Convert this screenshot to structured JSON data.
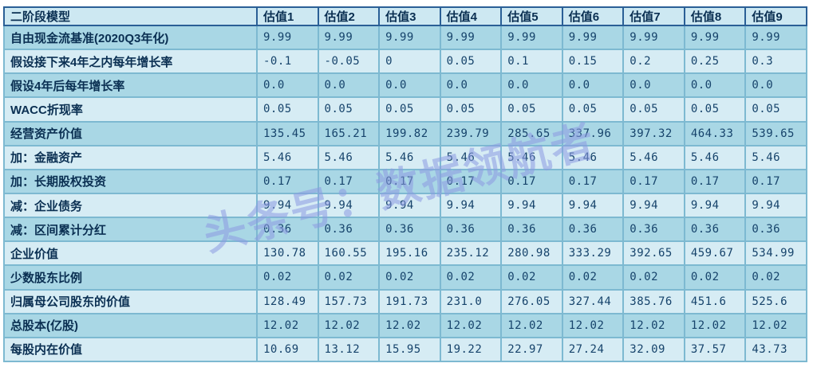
{
  "watermark": {
    "text": "头条号：数据领航者",
    "color": "#8d9be3"
  },
  "colors": {
    "row_dark": "#a9d7e5",
    "row_light": "#d6ecf4",
    "header_bg": "#cde8f2",
    "body_grid": "#7db9d1",
    "header_grid": "#2a5f96",
    "outer_border": "#27609b",
    "label_text": "#0a2f52",
    "value_text": "#16436b",
    "page_bg": "#ffffff"
  },
  "table": {
    "title_cell": "二阶段模型",
    "columns": [
      "估值1",
      "估值2",
      "估值3",
      "估值4",
      "估值5",
      "估值6",
      "估值7",
      "估值8",
      "估值9"
    ],
    "rows": [
      {
        "label": "自由现金流基准(2020Q3年化)",
        "values": [
          "9.99",
          "9.99",
          "9.99",
          "9.99",
          "9.99",
          "9.99",
          "9.99",
          "9.99",
          "9.99"
        ]
      },
      {
        "label": "假设接下来4年之内每年增长率",
        "values": [
          "-0.1",
          "-0.05",
          "0",
          "0.05",
          "0.1",
          "0.15",
          "0.2",
          "0.25",
          "0.3"
        ]
      },
      {
        "label": "假设4年后每年增长率",
        "values": [
          "0.0",
          "0.0",
          "0.0",
          "0.0",
          "0.0",
          "0.0",
          "0.0",
          "0.0",
          "0.0"
        ]
      },
      {
        "label": "WACC折现率",
        "values": [
          "0.05",
          "0.05",
          "0.05",
          "0.05",
          "0.05",
          "0.05",
          "0.05",
          "0.05",
          "0.05"
        ]
      },
      {
        "label": "经营资产价值",
        "values": [
          "135.45",
          "165.21",
          "199.82",
          "239.79",
          "285.65",
          "337.96",
          "397.32",
          "464.33",
          "539.65"
        ]
      },
      {
        "label": "加：金融资产",
        "values": [
          "5.46",
          "5.46",
          "5.46",
          "5.46",
          "5.46",
          "5.46",
          "5.46",
          "5.46",
          "5.46"
        ]
      },
      {
        "label": "加：长期股权投资",
        "values": [
          "0.17",
          "0.17",
          "0.17",
          "0.17",
          "0.17",
          "0.17",
          "0.17",
          "0.17",
          "0.17"
        ]
      },
      {
        "label": "减：企业债务",
        "values": [
          "9.94",
          "9.94",
          "9.94",
          "9.94",
          "9.94",
          "9.94",
          "9.94",
          "9.94",
          "9.94"
        ]
      },
      {
        "label": "减：区间累计分红",
        "values": [
          "0.36",
          "0.36",
          "0.36",
          "0.36",
          "0.36",
          "0.36",
          "0.36",
          "0.36",
          "0.36"
        ]
      },
      {
        "label": "企业价值",
        "values": [
          "130.78",
          "160.55",
          "195.16",
          "235.12",
          "280.98",
          "333.29",
          "392.65",
          "459.67",
          "534.99"
        ]
      },
      {
        "label": "少数股东比例",
        "values": [
          "0.02",
          "0.02",
          "0.02",
          "0.02",
          "0.02",
          "0.02",
          "0.02",
          "0.02",
          "0.02"
        ]
      },
      {
        "label": "归属母公司股东的价值",
        "values": [
          "128.49",
          "157.73",
          "191.73",
          "231.0",
          "276.05",
          "327.44",
          "385.76",
          "451.6",
          "525.6"
        ]
      },
      {
        "label": "总股本(亿股)",
        "values": [
          "12.02",
          "12.02",
          "12.02",
          "12.02",
          "12.02",
          "12.02",
          "12.02",
          "12.02",
          "12.02"
        ]
      },
      {
        "label": "每股内在价值",
        "values": [
          "10.69",
          "13.12",
          "15.95",
          "19.22",
          "22.97",
          "27.24",
          "32.09",
          "37.57",
          "43.73"
        ]
      }
    ]
  }
}
